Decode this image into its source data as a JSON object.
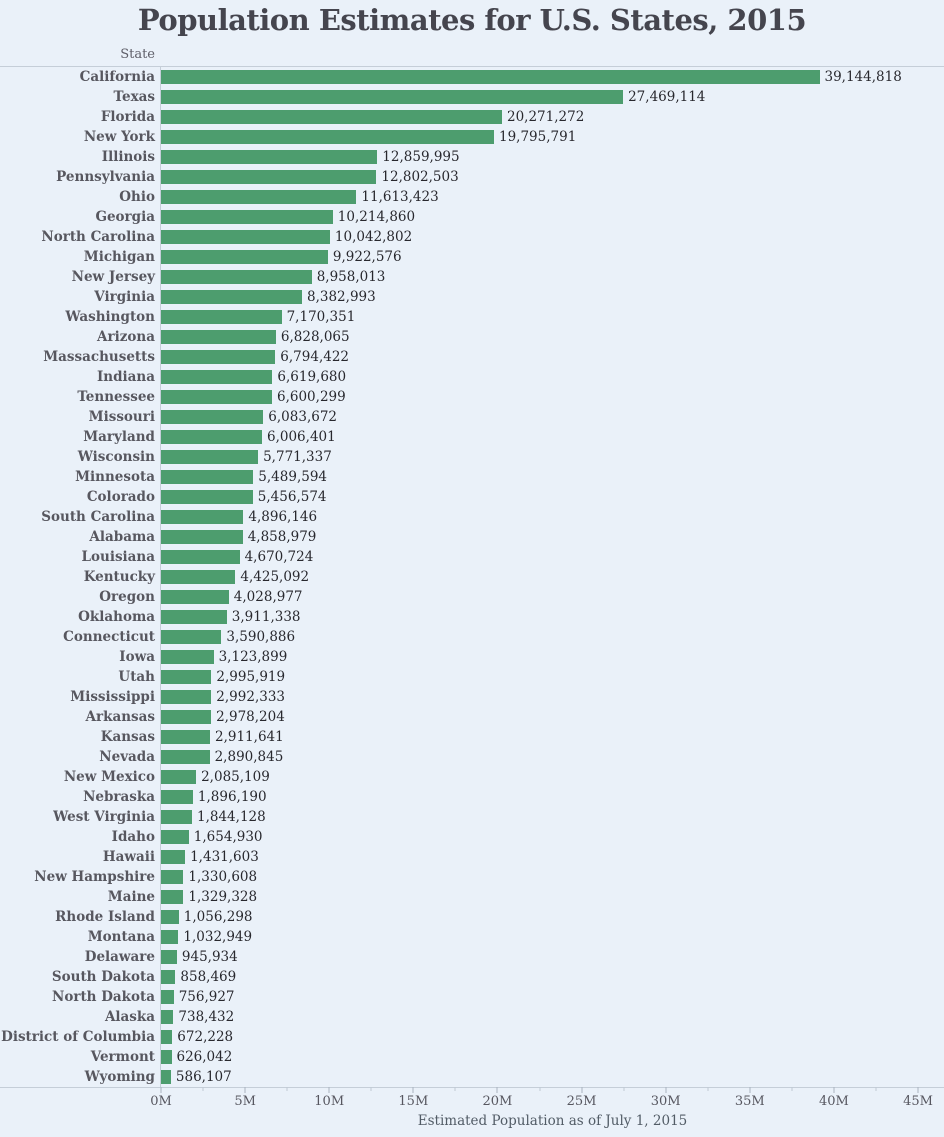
{
  "colors": {
    "background": "#EAF1F9",
    "bar": "#4D9D6E",
    "axis_line": "#C5CED8",
    "title_text": "#45454E",
    "state_label_text": "#57575F",
    "value_label_text": "#28282E",
    "tick_text": "#575760"
  },
  "chart_data": {
    "type": "bar",
    "orientation": "horizontal",
    "title": "Population Estimates for U.S. States, 2015",
    "xlabel": "Estimated Population as of July 1, 2015",
    "ylabel": "State",
    "xlim": [
      0,
      45000000
    ],
    "grid": false,
    "legend": null,
    "x_tick_labels": [
      "0M",
      "5M",
      "10M",
      "15M",
      "20M",
      "25M",
      "30M",
      "35M",
      "40M",
      "45M"
    ],
    "bar_color": "#4D9D6E",
    "rows": [
      {
        "state": "California",
        "value": 39144818,
        "label": "39,144,818"
      },
      {
        "state": "Texas",
        "value": 27469114,
        "label": "27,469,114"
      },
      {
        "state": "Florida",
        "value": 20271272,
        "label": "20,271,272"
      },
      {
        "state": "New York",
        "value": 19795791,
        "label": "19,795,791"
      },
      {
        "state": "Illinois",
        "value": 12859995,
        "label": "12,859,995"
      },
      {
        "state": "Pennsylvania",
        "value": 12802503,
        "label": "12,802,503"
      },
      {
        "state": "Ohio",
        "value": 11613423,
        "label": "11,613,423"
      },
      {
        "state": "Georgia",
        "value": 10214860,
        "label": "10,214,860"
      },
      {
        "state": "North Carolina",
        "value": 10042802,
        "label": "10,042,802"
      },
      {
        "state": "Michigan",
        "value": 9922576,
        "label": "9,922,576"
      },
      {
        "state": "New Jersey",
        "value": 8958013,
        "label": "8,958,013"
      },
      {
        "state": "Virginia",
        "value": 8382993,
        "label": "8,382,993"
      },
      {
        "state": "Washington",
        "value": 7170351,
        "label": "7,170,351"
      },
      {
        "state": "Arizona",
        "value": 6828065,
        "label": "6,828,065"
      },
      {
        "state": "Massachusetts",
        "value": 6794422,
        "label": "6,794,422"
      },
      {
        "state": "Indiana",
        "value": 6619680,
        "label": "6,619,680"
      },
      {
        "state": "Tennessee",
        "value": 6600299,
        "label": "6,600,299"
      },
      {
        "state": "Missouri",
        "value": 6083672,
        "label": "6,083,672"
      },
      {
        "state": "Maryland",
        "value": 6006401,
        "label": "6,006,401"
      },
      {
        "state": "Wisconsin",
        "value": 5771337,
        "label": "5,771,337"
      },
      {
        "state": "Minnesota",
        "value": 5489594,
        "label": "5,489,594"
      },
      {
        "state": "Colorado",
        "value": 5456574,
        "label": "5,456,574"
      },
      {
        "state": "South Carolina",
        "value": 4896146,
        "label": "4,896,146"
      },
      {
        "state": "Alabama",
        "value": 4858979,
        "label": "4,858,979"
      },
      {
        "state": "Louisiana",
        "value": 4670724,
        "label": "4,670,724"
      },
      {
        "state": "Kentucky",
        "value": 4425092,
        "label": "4,425,092"
      },
      {
        "state": "Oregon",
        "value": 4028977,
        "label": "4,028,977"
      },
      {
        "state": "Oklahoma",
        "value": 3911338,
        "label": "3,911,338"
      },
      {
        "state": "Connecticut",
        "value": 3590886,
        "label": "3,590,886"
      },
      {
        "state": "Iowa",
        "value": 3123899,
        "label": "3,123,899"
      },
      {
        "state": "Utah",
        "value": 2995919,
        "label": "2,995,919"
      },
      {
        "state": "Mississippi",
        "value": 2992333,
        "label": "2,992,333"
      },
      {
        "state": "Arkansas",
        "value": 2978204,
        "label": "2,978,204"
      },
      {
        "state": "Kansas",
        "value": 2911641,
        "label": "2,911,641"
      },
      {
        "state": "Nevada",
        "value": 2890845,
        "label": "2,890,845"
      },
      {
        "state": "New Mexico",
        "value": 2085109,
        "label": "2,085,109"
      },
      {
        "state": "Nebraska",
        "value": 1896190,
        "label": "1,896,190"
      },
      {
        "state": "West Virginia",
        "value": 1844128,
        "label": "1,844,128"
      },
      {
        "state": "Idaho",
        "value": 1654930,
        "label": "1,654,930"
      },
      {
        "state": "Hawaii",
        "value": 1431603,
        "label": "1,431,603"
      },
      {
        "state": "New Hampshire",
        "value": 1330608,
        "label": "1,330,608"
      },
      {
        "state": "Maine",
        "value": 1329328,
        "label": "1,329,328"
      },
      {
        "state": "Rhode Island",
        "value": 1056298,
        "label": "1,056,298"
      },
      {
        "state": "Montana",
        "value": 1032949,
        "label": "1,032,949"
      },
      {
        "state": "Delaware",
        "value": 945934,
        "label": "945,934"
      },
      {
        "state": "South Dakota",
        "value": 858469,
        "label": "858,469"
      },
      {
        "state": "North Dakota",
        "value": 756927,
        "label": "756,927"
      },
      {
        "state": "Alaska",
        "value": 738432,
        "label": "738,432"
      },
      {
        "state": "District of Columbia",
        "value": 672228,
        "label": "672,228"
      },
      {
        "state": "Vermont",
        "value": 626042,
        "label": "626,042"
      },
      {
        "state": "Wyoming",
        "value": 586107,
        "label": "586,107"
      }
    ]
  }
}
